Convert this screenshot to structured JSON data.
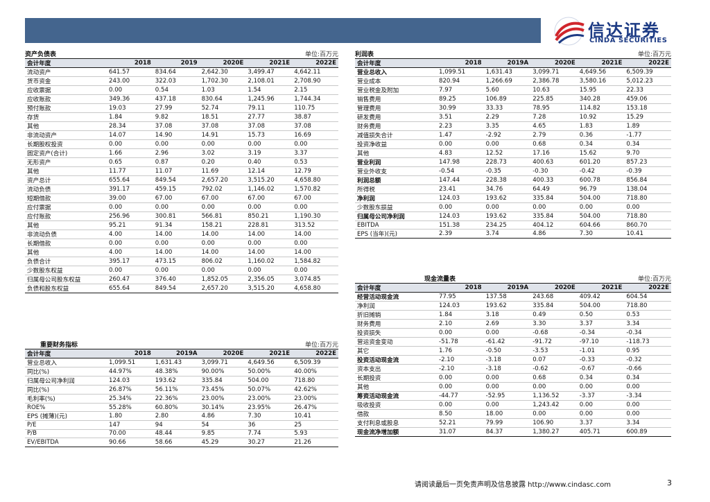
{
  "logo": {
    "cn": "信达证券",
    "en": "CINDA SECURITIES"
  },
  "balance": {
    "title": "资产负债表",
    "unit": "单位:百万元",
    "header": [
      "会计年度",
      "2018",
      "2019",
      "2020E",
      "2021E",
      "2022E"
    ],
    "rows": [
      {
        "label": "流动资产",
        "values": [
          "641.57",
          "834.64",
          "2,642.30",
          "3,499.47",
          "4,642.11"
        ]
      },
      {
        "label": "货币资金",
        "values": [
          "243.00",
          "322.03",
          "1,702.30",
          "2,108.01",
          "2,708.90"
        ]
      },
      {
        "label": "应收票据",
        "values": [
          "0.00",
          "0.54",
          "1.03",
          "1.54",
          "2.15"
        ]
      },
      {
        "label": "应收账款",
        "values": [
          "349.36",
          "437.18",
          "830.64",
          "1,245.96",
          "1,744.34"
        ]
      },
      {
        "label": "预付账款",
        "values": [
          "19.03",
          "27.99",
          "52.74",
          "79.11",
          "110.75"
        ]
      },
      {
        "label": "存货",
        "values": [
          "1.84",
          "9.82",
          "18.51",
          "27.77",
          "38.87"
        ]
      },
      {
        "label": "其他",
        "values": [
          "28.34",
          "37.08",
          "37.08",
          "37.08",
          "37.08"
        ]
      },
      {
        "label": "非流动资产",
        "values": [
          "14.07",
          "14.90",
          "14.91",
          "15.73",
          "16.69"
        ]
      },
      {
        "label": "长期股权投资",
        "values": [
          "0.00",
          "0.00",
          "0.00",
          "0.00",
          "0.00"
        ]
      },
      {
        "label": "固定资产(合计)",
        "values": [
          "1.66",
          "2.96",
          "3.02",
          "3.19",
          "3.37"
        ]
      },
      {
        "label": "无形资产",
        "values": [
          "0.65",
          "0.87",
          "0.20",
          "0.40",
          "0.53"
        ]
      },
      {
        "label": "其他",
        "values": [
          "11.77",
          "11.07",
          "11.69",
          "12.14",
          "12.79"
        ]
      },
      {
        "label": "资产总计",
        "values": [
          "655.64",
          "849.54",
          "2,657.20",
          "3,515.20",
          "4,658.80"
        ]
      },
      {
        "label": "流动负债",
        "values": [
          "391.17",
          "459.15",
          "792.02",
          "1,146.02",
          "1,570.82"
        ]
      },
      {
        "label": "短期借款",
        "values": [
          "39.00",
          "67.00",
          "67.00",
          "67.00",
          "67.00"
        ]
      },
      {
        "label": "应付票据",
        "values": [
          "0.00",
          "0.00",
          "0.00",
          "0.00",
          "0.00"
        ]
      },
      {
        "label": "应付账款",
        "values": [
          "256.96",
          "300.81",
          "566.81",
          "850.21",
          "1,190.30"
        ]
      },
      {
        "label": "其他",
        "values": [
          "95.21",
          "91.34",
          "158.21",
          "228.81",
          "313.52"
        ]
      },
      {
        "label": "非流动负债",
        "values": [
          "4.00",
          "14.00",
          "14.00",
          "14.00",
          "14.00"
        ]
      },
      {
        "label": "长期借款",
        "values": [
          "0.00",
          "0.00",
          "0.00",
          "0.00",
          "0.00"
        ]
      },
      {
        "label": "其他",
        "values": [
          "4.00",
          "14.00",
          "14.00",
          "14.00",
          "14.00"
        ]
      },
      {
        "label": "负债合计",
        "values": [
          "395.17",
          "473.15",
          "806.02",
          "1,160.02",
          "1,584.82"
        ]
      },
      {
        "label": "少数股东权益",
        "values": [
          "0.00",
          "0.00",
          "0.00",
          "0.00",
          "0.00"
        ]
      },
      {
        "label": "归属母公司股东权益",
        "values": [
          "260.47",
          "376.40",
          "1,852.05",
          "2,356.05",
          "3,074.85"
        ]
      },
      {
        "label": "负债和股东权益",
        "values": [
          "655.64",
          "849.54",
          "2,657.20",
          "3,515.20",
          "4,658.80"
        ]
      }
    ]
  },
  "indicators": {
    "title": "重要财务指标",
    "unit": "单位:百万元",
    "header": [
      "会计年度",
      "2018",
      "2019A",
      "2020E",
      "2021E",
      "2022E"
    ],
    "rows": [
      {
        "label": "营业总收入",
        "values": [
          "1,099.51",
          "1,631.43",
          "3,099.71",
          "4,649.56",
          "6,509.39"
        ]
      },
      {
        "label": "同比(%)",
        "values": [
          "44.97%",
          "48.38%",
          "90.00%",
          "50.00%",
          "40.00%"
        ]
      },
      {
        "label": "归属母公司净利润",
        "values": [
          "124.03",
          "193.62",
          "335.84",
          "504.00",
          "718.80"
        ]
      },
      {
        "label": "同比(%)",
        "values": [
          "26.87%",
          "56.11%",
          "73.45%",
          "50.07%",
          "42.62%"
        ]
      },
      {
        "label": "毛利率(%)",
        "values": [
          "25.34%",
          "22.36%",
          "23.00%",
          "23.00%",
          "23.00%"
        ]
      },
      {
        "label": "ROE%",
        "values": [
          "55.28%",
          "60.80%",
          "30.14%",
          "23.95%",
          "26.47%"
        ]
      },
      {
        "label": "EPS (摊薄)(元)",
        "values": [
          "1.80",
          "2.80",
          "4.86",
          "7.30",
          "10.41"
        ]
      },
      {
        "label": "P/E",
        "values": [
          "147",
          "94",
          "54",
          "36",
          "25"
        ]
      },
      {
        "label": "P/B",
        "values": [
          "70.00",
          "48.44",
          "9.85",
          "7.74",
          "5.93"
        ]
      },
      {
        "label": "EV/EBITDA",
        "values": [
          "90.66",
          "58.66",
          "45.29",
          "30.27",
          "21.26"
        ]
      }
    ]
  },
  "income": {
    "title": "利润表",
    "unit": "单位:百万元",
    "header": [
      "会计年度",
      "2018",
      "2019A",
      "2020E",
      "2021E",
      "2022E"
    ],
    "rows": [
      {
        "label": "营业总收入",
        "values": [
          "1,099.51",
          "1,631.43",
          "3,099.71",
          "4,649.56",
          "6,509.39"
        ],
        "bold": true
      },
      {
        "label": "营业成本",
        "values": [
          "820.94",
          "1,266.69",
          "2,386.78",
          "3,580.16",
          "5,012.23"
        ]
      },
      {
        "label": "营业税金及附加",
        "values": [
          "7.97",
          "5.60",
          "10.63",
          "15.95",
          "22.33"
        ]
      },
      {
        "label": "销售费用",
        "values": [
          "89.25",
          "106.89",
          "225.85",
          "340.28",
          "459.06"
        ]
      },
      {
        "label": "管理费用",
        "values": [
          "30.99",
          "33.33",
          "78.95",
          "114.82",
          "153.18"
        ]
      },
      {
        "label": "研发费用",
        "values": [
          "3.51",
          "2.29",
          "7.28",
          "10.92",
          "15.29"
        ]
      },
      {
        "label": "财务费用",
        "values": [
          "2.23",
          "3.35",
          "4.65",
          "1.83",
          "1.89"
        ]
      },
      {
        "label": "减值损失合计",
        "values": [
          "1.47",
          "-2.92",
          "2.79",
          "0.36",
          "-1.77"
        ]
      },
      {
        "label": "投资净收益",
        "values": [
          "0.00",
          "0.00",
          "0.68",
          "0.34",
          "0.34"
        ]
      },
      {
        "label": "其他",
        "values": [
          "4.83",
          "12.52",
          "17.16",
          "15.62",
          "9.70"
        ]
      },
      {
        "label": "营业利润",
        "values": [
          "147.98",
          "228.73",
          "400.63",
          "601.20",
          "857.23"
        ],
        "bold": true
      },
      {
        "label": "营业外收支",
        "values": [
          "-0.54",
          "-0.35",
          "-0.30",
          "-0.42",
          "-0.39"
        ]
      },
      {
        "label": "利润总额",
        "values": [
          "147.44",
          "228.38",
          "400.33",
          "600.78",
          "856.84"
        ],
        "bold": true
      },
      {
        "label": "所得税",
        "values": [
          "23.41",
          "34.76",
          "64.49",
          "96.79",
          "138.04"
        ]
      },
      {
        "label": "净利润",
        "values": [
          "124.03",
          "193.62",
          "335.84",
          "504.00",
          "718.80"
        ],
        "bold": true
      },
      {
        "label": "少数股东损益",
        "values": [
          "0.00",
          "0.00",
          "0.00",
          "0.00",
          "0.00"
        ]
      },
      {
        "label": "归属母公司净利润",
        "values": [
          "124.03",
          "193.62",
          "335.84",
          "504.00",
          "718.80"
        ],
        "bold": true
      },
      {
        "label": "EBITDA",
        "values": [
          "151.38",
          "234.25",
          "404.12",
          "604.66",
          "860.70"
        ]
      },
      {
        "label": "EPS (当年)(元)",
        "values": [
          "2.39",
          "3.74",
          "4.86",
          "7.30",
          "10.41"
        ]
      }
    ]
  },
  "cashflow": {
    "title": "现金流量表",
    "unit": "单位:百万元",
    "header": [
      "会计年度",
      "2018",
      "2019A",
      "2020E",
      "2021E",
      "2022E"
    ],
    "rows": [
      {
        "label": "经营活动现金流",
        "values": [
          "77.95",
          "137.58",
          "243.68",
          "409.42",
          "604.54"
        ],
        "bold": true
      },
      {
        "label": "净利润",
        "values": [
          "124.03",
          "193.62",
          "335.84",
          "504.00",
          "718.80"
        ]
      },
      {
        "label": "折旧摊销",
        "values": [
          "1.84",
          "3.18",
          "0.49",
          "0.50",
          "0.53"
        ]
      },
      {
        "label": "财务费用",
        "values": [
          "2.10",
          "2.69",
          "3.30",
          "3.37",
          "3.34"
        ]
      },
      {
        "label": "投资损失",
        "values": [
          "0.00",
          "0.00",
          "-0.68",
          "-0.34",
          "-0.34"
        ]
      },
      {
        "label": "营运资金变动",
        "values": [
          "-51.78",
          "-61.42",
          "-91.72",
          "-97.10",
          "-118.73"
        ]
      },
      {
        "label": "其它",
        "values": [
          "1.76",
          "-0.50",
          "-3.53",
          "-1.01",
          "0.95"
        ]
      },
      {
        "label": "投资活动现金流",
        "values": [
          "-2.10",
          "-3.18",
          "0.07",
          "-0.33",
          "-0.32"
        ],
        "bold": true
      },
      {
        "label": "资本支出",
        "values": [
          "-2.10",
          "-3.18",
          "-0.62",
          "-0.67",
          "-0.66"
        ]
      },
      {
        "label": "长期投资",
        "values": [
          "0.00",
          "0.00",
          "0.68",
          "0.34",
          "0.34"
        ]
      },
      {
        "label": "其他",
        "values": [
          "0.00",
          "0.00",
          "0.00",
          "0.00",
          "0.00"
        ]
      },
      {
        "label": "筹资活动现金流",
        "values": [
          "-44.77",
          "-52.95",
          "1,136.52",
          "-3.37",
          "-3.34"
        ],
        "bold": true
      },
      {
        "label": "吸收投资",
        "values": [
          "0.00",
          "0.00",
          "1,243.42",
          "0.00",
          "0.00"
        ]
      },
      {
        "label": "借款",
        "values": [
          "8.50",
          "18.00",
          "0.00",
          "0.00",
          "0.00"
        ]
      },
      {
        "label": "支付利息或股息",
        "values": [
          "52.21",
          "79.99",
          "106.90",
          "3.37",
          "3.34"
        ]
      },
      {
        "label": "现金流净增加额",
        "values": [
          "31.07",
          "84.37",
          "1,380.27",
          "405.71",
          "600.89"
        ],
        "bold": true
      }
    ]
  },
  "footer": {
    "text": "请阅读最后一页免责声明及信息披露 http://www.cindasc.com",
    "page": "3"
  }
}
